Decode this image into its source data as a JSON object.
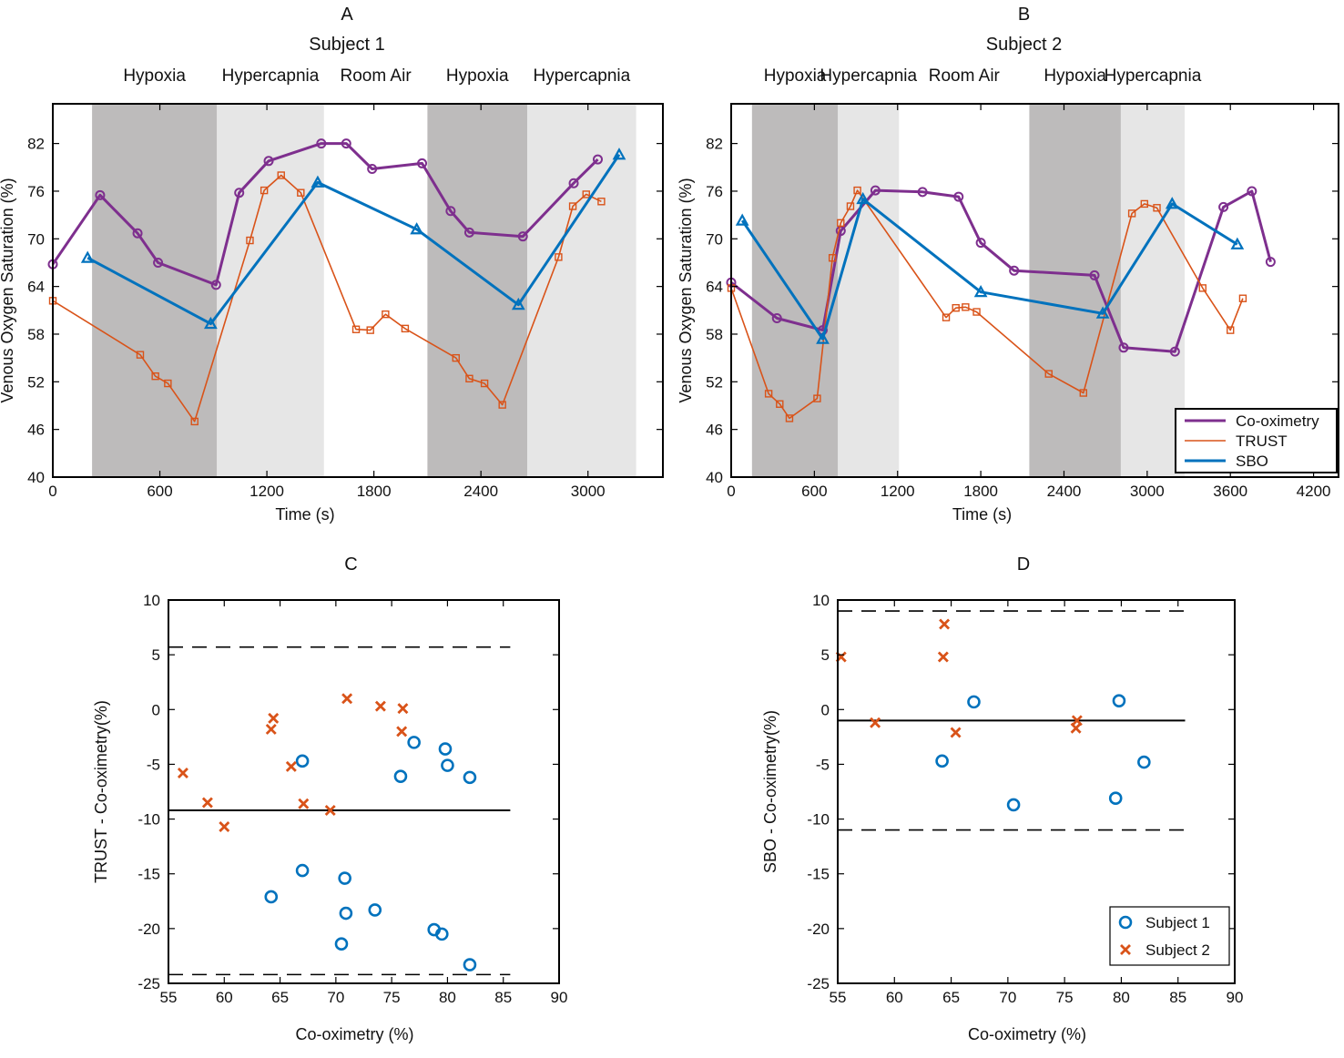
{
  "colors": {
    "cooximetry": "#7e2f8e",
    "trust": "#d95319",
    "sbo": "#0072bd",
    "subject1": "#0072bd",
    "subject2": "#d95319",
    "hypoxia_shade": "#bdbbbb",
    "hypercapnia_shade": "#e6e6e6"
  },
  "chart_data": [
    {
      "panel": "A",
      "type": "line",
      "title": "A",
      "subtitle": "Subject 1",
      "xlabel": "Time (s)",
      "ylabel": "Venous Oxygen Saturation (%)",
      "xlim": [
        0,
        3420
      ],
      "ylim": [
        40,
        87
      ],
      "xticks": [
        0,
        600,
        1200,
        1800,
        2400,
        3000
      ],
      "yticks": [
        40,
        46,
        52,
        58,
        64,
        70,
        76,
        82
      ],
      "phases": [
        {
          "label": "Hypoxia",
          "start": 220,
          "end": 920,
          "shade": "hypoxia"
        },
        {
          "label": "Hypercapnia",
          "start": 920,
          "end": 1520,
          "shade": "hypercapnia"
        },
        {
          "label": "Room Air",
          "start": 1520,
          "end": 2100,
          "shade": "none"
        },
        {
          "label": "Hypoxia",
          "start": 2100,
          "end": 2660,
          "shade": "hypoxia"
        },
        {
          "label": "Hypercapnia",
          "start": 2660,
          "end": 3270,
          "shade": "hypercapnia"
        }
      ],
      "series": [
        {
          "name": "Co-oximetry",
          "color_key": "cooximetry",
          "marker": "circle",
          "width": 3,
          "x": [
            0,
            265,
            475,
            590,
            915,
            1045,
            1210,
            1505,
            1645,
            1790,
            2070,
            2230,
            2335,
            2635,
            2920,
            3055
          ],
          "y": [
            66.8,
            75.5,
            70.7,
            67.0,
            64.2,
            75.8,
            79.8,
            82.0,
            82.0,
            78.8,
            79.5,
            73.5,
            70.8,
            70.3,
            77.0,
            80.0
          ]
        },
        {
          "name": "TRUST",
          "color_key": "trust",
          "marker": "square",
          "width": 1.6,
          "x": [
            0,
            490,
            575,
            645,
            795,
            1105,
            1185,
            1280,
            1390,
            1700,
            1780,
            1865,
            1975,
            2260,
            2335,
            2420,
            2520,
            2835,
            2915,
            2990,
            3075
          ],
          "y": [
            62.2,
            55.4,
            52.7,
            51.8,
            47.0,
            69.8,
            76.1,
            78.0,
            75.8,
            58.6,
            58.5,
            60.5,
            58.7,
            55.0,
            52.4,
            51.8,
            49.1,
            67.7,
            74.1,
            75.6,
            74.7
          ]
        },
        {
          "name": "SBO",
          "color_key": "sbo",
          "marker": "triangle",
          "width": 3,
          "x": [
            195,
            885,
            1485,
            2040,
            2610,
            3175
          ],
          "y": [
            67.6,
            59.3,
            77.1,
            71.2,
            61.7,
            80.6
          ]
        }
      ]
    },
    {
      "panel": "B",
      "type": "line",
      "title": "B",
      "subtitle": "Subject 2",
      "xlabel": "Time (s)",
      "ylabel": "Venous Oxygen Saturation (%)",
      "xlim": [
        0,
        4380
      ],
      "ylim": [
        40,
        87
      ],
      "xticks": [
        0,
        600,
        1200,
        1800,
        2400,
        3000,
        3600,
        4200
      ],
      "yticks": [
        40,
        46,
        52,
        58,
        64,
        70,
        76,
        82
      ],
      "phases": [
        {
          "label": "Hypoxia",
          "start": 150,
          "end": 770,
          "shade": "hypoxia"
        },
        {
          "label": "Hypercapnia",
          "start": 770,
          "end": 1210,
          "shade": "hypercapnia"
        },
        {
          "label": "Room Air",
          "start": 1210,
          "end": 2150,
          "shade": "none"
        },
        {
          "label": "Hypoxia",
          "start": 2150,
          "end": 2810,
          "shade": "hypoxia"
        },
        {
          "label": "Hypercapnia",
          "start": 2810,
          "end": 3270,
          "shade": "hypercapnia"
        }
      ],
      "series": [
        {
          "name": "Co-oximetry",
          "color_key": "cooximetry",
          "marker": "circle",
          "width": 3,
          "x": [
            0,
            330,
            660,
            790,
            1040,
            1380,
            1640,
            1800,
            2040,
            2620,
            2830,
            3200,
            3550,
            3755,
            3890
          ],
          "y": [
            64.5,
            60.0,
            58.5,
            71.0,
            76.1,
            75.9,
            75.3,
            69.5,
            66.0,
            65.4,
            56.3,
            55.8,
            74.0,
            76.0,
            67.1
          ]
        },
        {
          "name": "TRUST",
          "color_key": "trust",
          "marker": "square",
          "width": 1.6,
          "x": [
            0,
            270,
            350,
            420,
            620,
            730,
            790,
            860,
            910,
            1550,
            1620,
            1690,
            1770,
            2290,
            2540,
            2890,
            2980,
            3070,
            3400,
            3600,
            3690
          ],
          "y": [
            63.8,
            50.5,
            49.2,
            47.4,
            49.9,
            67.6,
            72.0,
            74.1,
            76.1,
            60.1,
            61.3,
            61.4,
            60.8,
            53.0,
            50.6,
            73.2,
            74.4,
            73.9,
            63.8,
            58.5,
            62.5
          ]
        },
        {
          "name": "SBO",
          "color_key": "sbo",
          "marker": "triangle",
          "width": 3,
          "x": [
            80,
            660,
            950,
            1800,
            2680,
            3180,
            3650
          ],
          "y": [
            72.3,
            57.4,
            75.0,
            63.3,
            60.6,
            74.4,
            69.3
          ]
        }
      ],
      "legend": [
        "Co-oximetry",
        "TRUST",
        "SBO"
      ],
      "legend_location": "bottom-right"
    },
    {
      "panel": "C",
      "type": "scatter",
      "title": "C",
      "xlabel": "Co-oximetry (%)",
      "ylabel": "TRUST - Co-oximetry(%)",
      "xlim": [
        55,
        90
      ],
      "ylim": [
        -25,
        10
      ],
      "xticks": [
        55,
        60,
        65,
        70,
        75,
        80,
        85,
        90
      ],
      "yticks": [
        -25,
        -20,
        -15,
        -10,
        -5,
        0,
        5,
        10
      ],
      "mean_line": -9.2,
      "limits_of_agreement": [
        5.7,
        -24.2
      ],
      "series": [
        {
          "name": "Subject 1",
          "color_key": "subject1",
          "marker": "circle",
          "x": [
            64.2,
            67.0,
            67.0,
            70.5,
            70.8,
            70.9,
            73.5,
            75.8,
            77.0,
            78.8,
            79.5,
            79.8,
            80.0,
            82.0,
            82.0
          ],
          "y": [
            -17.1,
            -14.7,
            -4.7,
            -21.4,
            -15.4,
            -18.6,
            -18.3,
            -6.1,
            -3.0,
            -20.1,
            -20.5,
            -3.6,
            -5.1,
            -6.2,
            -23.3
          ]
        },
        {
          "name": "Subject 2",
          "color_key": "subject2",
          "marker": "x",
          "x": [
            56.3,
            58.5,
            60.0,
            64.2,
            64.4,
            66.0,
            67.1,
            69.5,
            71.0,
            74.0,
            75.9,
            76.0
          ],
          "y": [
            -5.8,
            -8.5,
            -10.7,
            -1.8,
            -0.8,
            -5.2,
            -8.6,
            -9.2,
            1.0,
            0.3,
            -2.0,
            0.1
          ]
        }
      ]
    },
    {
      "panel": "D",
      "type": "scatter",
      "title": "D",
      "xlabel": "Co-oximetry (%)",
      "ylabel": "SBO - Co-oximetry(%)",
      "xlim": [
        55,
        90
      ],
      "ylim": [
        -25,
        10
      ],
      "xticks": [
        55,
        60,
        65,
        70,
        75,
        80,
        85,
        90
      ],
      "yticks": [
        -25,
        -20,
        -15,
        -10,
        -5,
        0,
        5,
        10
      ],
      "mean_line": -1.0,
      "limits_of_agreement": [
        9.0,
        -11.0
      ],
      "series": [
        {
          "name": "Subject 1",
          "color_key": "subject1",
          "marker": "circle",
          "x": [
            64.2,
            67.0,
            70.5,
            79.5,
            79.8,
            82.0
          ],
          "y": [
            -4.7,
            0.7,
            -8.7,
            -8.1,
            0.8,
            -4.8
          ]
        },
        {
          "name": "Subject 2",
          "color_key": "subject2",
          "marker": "x",
          "x": [
            55.3,
            58.3,
            64.3,
            64.4,
            65.4,
            76.0,
            76.1
          ],
          "y": [
            4.8,
            -1.2,
            4.8,
            7.8,
            -2.1,
            -1.7,
            -1.0
          ]
        }
      ],
      "legend": [
        "Subject 1",
        "Subject 2"
      ],
      "legend_location": "bottom-right"
    }
  ]
}
